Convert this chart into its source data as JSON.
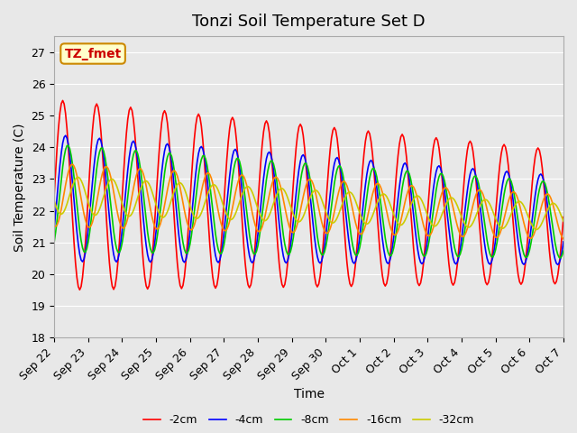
{
  "title": "Tonzi Soil Temperature Set D",
  "xlabel": "Time",
  "ylabel": "Soil Temperature (C)",
  "ylim": [
    18.0,
    27.5
  ],
  "yticks": [
    18.0,
    19.0,
    20.0,
    21.0,
    22.0,
    23.0,
    24.0,
    25.0,
    26.0,
    27.0
  ],
  "series_labels": [
    "-2cm",
    "-4cm",
    "-8cm",
    "-16cm",
    "-32cm"
  ],
  "series_colors": [
    "#ff0000",
    "#0000ff",
    "#00cc00",
    "#ff8800",
    "#cccc00"
  ],
  "annotation_text": "TZ_fmet",
  "annotation_bg": "#ffffcc",
  "annotation_edge": "#cc8800",
  "background_color": "#e8e8e8",
  "plot_bg": "#e8e8e8",
  "tick_labels": [
    "Sep 22",
    "Sep 23",
    "Sep 24",
    "Sep 25",
    "Sep 26",
    "Sep 27",
    "Sep 28",
    "Sep 29",
    "Sep 30",
    "Oct 1",
    "Oct 2",
    "Oct 3",
    "Oct 4",
    "Oct 5",
    "Oct 6",
    "Oct 7"
  ],
  "n_points": 16,
  "title_fontsize": 13,
  "label_fontsize": 10,
  "tick_fontsize": 9
}
